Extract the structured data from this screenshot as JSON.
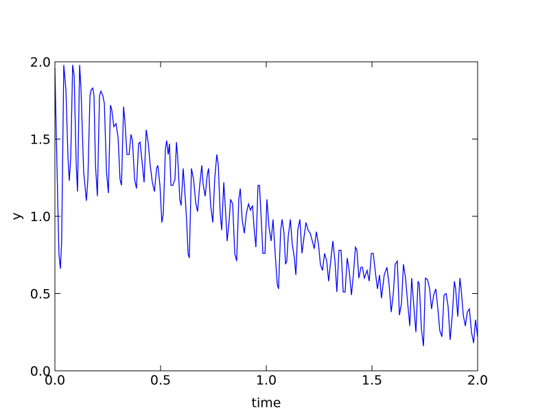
{
  "chart_data": {
    "type": "line",
    "xlabel": "time",
    "ylabel": "y",
    "color": "#0000ff",
    "xlim": [
      0,
      2
    ],
    "ylim": [
      0,
      2
    ],
    "xticks": [
      {
        "value": 0,
        "label": "0.0"
      },
      {
        "value": 0.5,
        "label": "0.5"
      },
      {
        "value": 1,
        "label": "1.0"
      },
      {
        "value": 1.5,
        "label": "1.5"
      },
      {
        "value": 2,
        "label": "2.0"
      }
    ],
    "yticks": [
      {
        "value": 0,
        "label": "0.0"
      },
      {
        "value": 0.5,
        "label": "0.5"
      },
      {
        "value": 1,
        "label": "1.0"
      },
      {
        "value": 1.5,
        "label": "1.5"
      },
      {
        "value": 2,
        "label": "2.0"
      }
    ],
    "x": [
      0,
      0.006,
      0.019,
      0.026,
      0.032,
      0.042,
      0.052,
      0.062,
      0.068,
      0.075,
      0.084,
      0.091,
      0.101,
      0.107,
      0.117,
      0.123,
      0.136,
      0.149,
      0.156,
      0.166,
      0.172,
      0.179,
      0.185,
      0.192,
      0.201,
      0.211,
      0.218,
      0.227,
      0.234,
      0.244,
      0.253,
      0.263,
      0.269,
      0.279,
      0.289,
      0.299,
      0.308,
      0.315,
      0.325,
      0.331,
      0.341,
      0.351,
      0.36,
      0.367,
      0.377,
      0.386,
      0.396,
      0.403,
      0.412,
      0.422,
      0.432,
      0.442,
      0.451,
      0.461,
      0.471,
      0.481,
      0.487,
      0.497,
      0.506,
      0.513,
      0.523,
      0.529,
      0.536,
      0.542,
      0.549,
      0.558,
      0.568,
      0.575,
      0.581,
      0.591,
      0.597,
      0.607,
      0.617,
      0.623,
      0.63,
      0.636,
      0.646,
      0.656,
      0.666,
      0.675,
      0.685,
      0.695,
      0.701,
      0.711,
      0.721,
      0.727,
      0.737,
      0.747,
      0.756,
      0.766,
      0.773,
      0.782,
      0.789,
      0.799,
      0.808,
      0.815,
      0.825,
      0.831,
      0.841,
      0.851,
      0.86,
      0.87,
      0.877,
      0.886,
      0.896,
      0.906,
      0.916,
      0.925,
      0.935,
      0.942,
      0.951,
      0.961,
      0.968,
      0.977,
      0.984,
      0.994,
      1.003,
      1.013,
      1.023,
      1.032,
      1.042,
      1.052,
      1.058,
      1.068,
      1.075,
      1.084,
      1.091,
      1.097,
      1.104,
      1.114,
      1.123,
      1.133,
      1.14,
      1.149,
      1.159,
      1.169,
      1.179,
      1.188,
      1.198,
      1.208,
      1.218,
      1.227,
      1.237,
      1.247,
      1.256,
      1.266,
      1.276,
      1.286,
      1.295,
      1.305,
      1.315,
      1.325,
      1.334,
      1.344,
      1.354,
      1.364,
      1.373,
      1.383,
      1.393,
      1.403,
      1.412,
      1.422,
      1.429,
      1.438,
      1.448,
      1.455,
      1.464,
      1.477,
      1.487,
      1.497,
      1.506,
      1.516,
      1.526,
      1.536,
      1.545,
      1.558,
      1.571,
      1.581,
      1.591,
      1.601,
      1.61,
      1.62,
      1.63,
      1.64,
      1.649,
      1.659,
      1.669,
      1.679,
      1.688,
      1.698,
      1.708,
      1.718,
      1.724,
      1.734,
      1.744,
      1.753,
      1.763,
      1.773,
      1.782,
      1.792,
      1.802,
      1.812,
      1.821,
      1.831,
      1.841,
      1.851,
      1.86,
      1.87,
      1.88,
      1.89,
      1.896,
      1.906,
      1.916,
      1.922,
      1.932,
      1.942,
      1.951,
      1.961,
      1.971,
      1.981,
      1.99,
      2.0
    ],
    "values": [
      1.96,
      1.56,
      0.76,
      0.66,
      0.84,
      1.98,
      1.82,
      1.38,
      1.23,
      1.38,
      1.98,
      1.91,
      1.33,
      1.16,
      1.98,
      1.84,
      1.29,
      1.1,
      1.24,
      1.78,
      1.82,
      1.83,
      1.78,
      1.33,
      1.13,
      1.78,
      1.81,
      1.78,
      1.73,
      1.29,
      1.15,
      1.72,
      1.69,
      1.58,
      1.6,
      1.51,
      1.24,
      1.2,
      1.71,
      1.62,
      1.4,
      1.4,
      1.53,
      1.49,
      1.24,
      1.18,
      1.47,
      1.48,
      1.36,
      1.22,
      1.56,
      1.47,
      1.33,
      1.22,
      1.16,
      1.31,
      1.33,
      1.2,
      0.96,
      1.02,
      1.44,
      1.49,
      1.4,
      1.47,
      1.2,
      1.2,
      1.24,
      1.48,
      1.38,
      1.11,
      1.07,
      1.31,
      1.11,
      0.98,
      0.76,
      0.73,
      1.31,
      1.24,
      1.09,
      1.03,
      1.2,
      1.33,
      1.21,
      1.13,
      1.27,
      1.31,
      1.07,
      0.96,
      1.24,
      1.4,
      1.33,
      1.02,
      0.91,
      1.22,
      1.02,
      0.84,
      0.98,
      1.11,
      1.08,
      0.76,
      0.71,
      1.11,
      1.18,
      0.98,
      0.89,
      1.02,
      1.08,
      1.04,
      1.07,
      0.93,
      0.8,
      1.2,
      1.2,
      0.96,
      0.76,
      0.76,
      1.11,
      0.93,
      0.84,
      0.98,
      0.76,
      0.56,
      0.53,
      0.91,
      0.98,
      0.89,
      0.69,
      0.71,
      0.87,
      0.98,
      0.82,
      0.73,
      0.62,
      0.91,
      0.98,
      0.76,
      0.87,
      0.96,
      0.91,
      0.89,
      0.84,
      0.79,
      0.9,
      0.82,
      0.69,
      0.65,
      0.76,
      0.71,
      0.58,
      0.71,
      0.84,
      0.71,
      0.51,
      0.78,
      0.78,
      0.51,
      0.51,
      0.73,
      0.64,
      0.49,
      0.62,
      0.8,
      0.78,
      0.6,
      0.67,
      0.67,
      0.6,
      0.65,
      0.58,
      0.76,
      0.76,
      0.64,
      0.53,
      0.62,
      0.47,
      0.62,
      0.67,
      0.56,
      0.38,
      0.5,
      0.69,
      0.71,
      0.36,
      0.44,
      0.69,
      0.6,
      0.44,
      0.29,
      0.6,
      0.42,
      0.25,
      0.58,
      0.56,
      0.27,
      0.16,
      0.6,
      0.59,
      0.53,
      0.4,
      0.49,
      0.53,
      0.4,
      0.26,
      0.22,
      0.49,
      0.5,
      0.42,
      0.2,
      0.36,
      0.58,
      0.53,
      0.35,
      0.6,
      0.53,
      0.36,
      0.29,
      0.38,
      0.4,
      0.25,
      0.18,
      0.33,
      0.22
    ]
  }
}
